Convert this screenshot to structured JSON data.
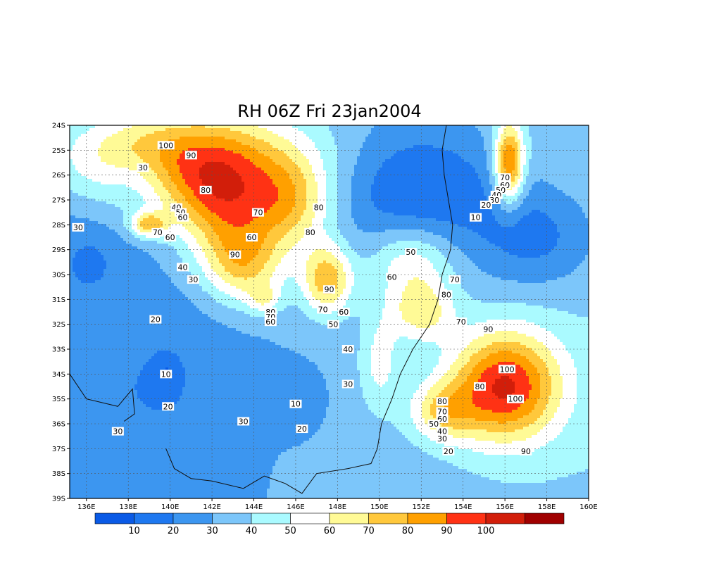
{
  "title": "RH 06Z Fri 23jan2004",
  "map": {
    "lat_labels": [
      "24S",
      "25S",
      "26S",
      "27S",
      "28S",
      "29S",
      "30S",
      "31S",
      "32S",
      "33S",
      "34S",
      "35S",
      "36S",
      "37S",
      "38S",
      "39S"
    ],
    "lon_labels": [
      "136E",
      "138E",
      "140E",
      "142E",
      "144E",
      "146E",
      "148E",
      "150E",
      "152E",
      "154E",
      "156E",
      "158E",
      "160E"
    ],
    "colors": {
      "c0": "#0a5ae6",
      "c1": "#1e78f0",
      "c2": "#3c96f0",
      "c3": "#7cc6fa",
      "c4": "#aafaff",
      "c5": "#ffffff",
      "c6": "#fffa96",
      "c7": "#ffc83c",
      "c8": "#ffa000",
      "c9": "#ff3214",
      "c10": "#d21e0a",
      "c11": "#a00000"
    },
    "contour_labels": [
      {
        "v": "100",
        "lon": 139.8,
        "lat": 24.8
      },
      {
        "v": "90",
        "lon": 141.0,
        "lat": 25.2
      },
      {
        "v": "30",
        "lon": 138.7,
        "lat": 25.7
      },
      {
        "v": "80",
        "lon": 141.7,
        "lat": 26.6
      },
      {
        "v": "40",
        "lon": 140.3,
        "lat": 27.3
      },
      {
        "v": "50",
        "lon": 140.5,
        "lat": 27.5
      },
      {
        "v": "60",
        "lon": 140.6,
        "lat": 27.7
      },
      {
        "v": "70",
        "lon": 139.4,
        "lat": 28.3
      },
      {
        "v": "60",
        "lon": 140.0,
        "lat": 28.5
      },
      {
        "v": "30",
        "lon": 135.6,
        "lat": 28.1
      },
      {
        "v": "70",
        "lon": 144.2,
        "lat": 27.5
      },
      {
        "v": "80",
        "lon": 147.1,
        "lat": 27.3
      },
      {
        "v": "60",
        "lon": 143.9,
        "lat": 28.5
      },
      {
        "v": "80",
        "lon": 146.7,
        "lat": 28.3
      },
      {
        "v": "90",
        "lon": 143.1,
        "lat": 29.2
      },
      {
        "v": "40",
        "lon": 140.6,
        "lat": 29.7
      },
      {
        "v": "30",
        "lon": 141.1,
        "lat": 30.2
      },
      {
        "v": "90",
        "lon": 147.6,
        "lat": 30.6
      },
      {
        "v": "80",
        "lon": 144.8,
        "lat": 31.5
      },
      {
        "v": "70",
        "lon": 144.8,
        "lat": 31.7
      },
      {
        "v": "60",
        "lon": 144.8,
        "lat": 31.9
      },
      {
        "v": "70",
        "lon": 147.3,
        "lat": 31.4
      },
      {
        "v": "60",
        "lon": 148.3,
        "lat": 31.5
      },
      {
        "v": "50",
        "lon": 147.8,
        "lat": 32.0
      },
      {
        "v": "20",
        "lon": 139.3,
        "lat": 31.8
      },
      {
        "v": "40",
        "lon": 148.5,
        "lat": 33.0
      },
      {
        "v": "10",
        "lon": 139.8,
        "lat": 34.0
      },
      {
        "v": "30",
        "lon": 148.5,
        "lat": 34.4
      },
      {
        "v": "10",
        "lon": 146.0,
        "lat": 35.2
      },
      {
        "v": "20",
        "lon": 139.9,
        "lat": 35.3
      },
      {
        "v": "30",
        "lon": 143.5,
        "lat": 35.9
      },
      {
        "v": "20",
        "lon": 146.3,
        "lat": 36.2
      },
      {
        "v": "30",
        "lon": 137.5,
        "lat": 36.3
      },
      {
        "v": "50",
        "lon": 151.5,
        "lat": 29.1
      },
      {
        "v": "60",
        "lon": 150.6,
        "lat": 30.1
      },
      {
        "v": "70",
        "lon": 153.6,
        "lat": 30.2
      },
      {
        "v": "80",
        "lon": 153.2,
        "lat": 30.8
      },
      {
        "v": "70",
        "lon": 153.9,
        "lat": 31.9
      },
      {
        "v": "90",
        "lon": 155.2,
        "lat": 32.2
      },
      {
        "v": "100",
        "lon": 156.1,
        "lat": 33.8
      },
      {
        "v": "80",
        "lon": 154.8,
        "lat": 34.5
      },
      {
        "v": "100",
        "lon": 156.5,
        "lat": 35.0
      },
      {
        "v": "80",
        "lon": 153.0,
        "lat": 35.1
      },
      {
        "v": "70",
        "lon": 153.0,
        "lat": 35.5
      },
      {
        "v": "60",
        "lon": 153.0,
        "lat": 35.8
      },
      {
        "v": "50",
        "lon": 152.6,
        "lat": 36.0
      },
      {
        "v": "40",
        "lon": 153.0,
        "lat": 36.3
      },
      {
        "v": "30",
        "lon": 153.0,
        "lat": 36.6
      },
      {
        "v": "20",
        "lon": 153.3,
        "lat": 37.1
      },
      {
        "v": "90",
        "lon": 157.0,
        "lat": 37.1
      },
      {
        "v": "70",
        "lon": 156.0,
        "lat": 26.1
      },
      {
        "v": "60",
        "lon": 156.0,
        "lat": 26.4
      },
      {
        "v": "50",
        "lon": 155.8,
        "lat": 26.6
      },
      {
        "v": "40",
        "lon": 155.6,
        "lat": 26.8
      },
      {
        "v": "30",
        "lon": 155.5,
        "lat": 27.0
      },
      {
        "v": "20",
        "lon": 155.1,
        "lat": 27.2
      },
      {
        "v": "10",
        "lon": 154.6,
        "lat": 27.7
      }
    ]
  },
  "colorbar": {
    "labels": [
      "10",
      "20",
      "30",
      "40",
      "50",
      "60",
      "70",
      "80",
      "90",
      "100"
    ]
  }
}
